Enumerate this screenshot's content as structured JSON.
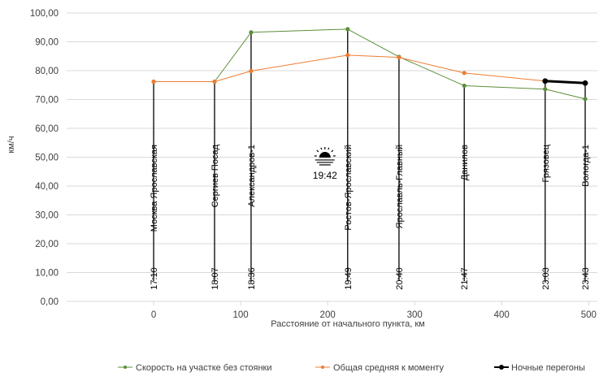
{
  "chart_data": {
    "type": "line",
    "xlabel": "Расстояние от начального пункта, км",
    "ylabel": "км/ч",
    "xlim": [
      -100,
      510
    ],
    "ylim": [
      0,
      100
    ],
    "x_ticks": [
      0,
      100,
      200,
      300,
      400,
      500
    ],
    "y_ticks": [
      0,
      10,
      20,
      30,
      40,
      50,
      60,
      70,
      80,
      90,
      100
    ],
    "y_tick_labels": [
      "0,00",
      "10,00",
      "20,00",
      "30,00",
      "40,00",
      "50,00",
      "60,00",
      "70,00",
      "80,00",
      "90,00",
      "100,00"
    ],
    "grid": "horizontal",
    "legend_position": "bottom",
    "series": [
      {
        "name": "Скорость на участке без стоянки",
        "color": "#5b8f3a",
        "points": [
          {
            "x": 0,
            "y": 76.2
          },
          {
            "x": 70,
            "y": 76.2
          },
          {
            "x": 112,
            "y": 93.3
          },
          {
            "x": 223,
            "y": 94.4
          },
          {
            "x": 282,
            "y": 84.8
          },
          {
            "x": 357,
            "y": 74.8
          },
          {
            "x": 450,
            "y": 73.6
          },
          {
            "x": 496,
            "y": 70.2
          }
        ]
      },
      {
        "name": "Общая средняя к моменту",
        "color": "#ed7d31",
        "points": [
          {
            "x": 0,
            "y": 76.2
          },
          {
            "x": 70,
            "y": 76.2
          },
          {
            "x": 112,
            "y": 79.9
          },
          {
            "x": 223,
            "y": 85.4
          },
          {
            "x": 282,
            "y": 84.6
          },
          {
            "x": 357,
            "y": 79.2
          },
          {
            "x": 450,
            "y": 76.4
          },
          {
            "x": 496,
            "y": 75.7
          }
        ]
      },
      {
        "name": "Ночные перегоны",
        "color": "#000000",
        "points": [
          {
            "x": 450,
            "y": 76.4
          },
          {
            "x": 496,
            "y": 75.7
          }
        ]
      }
    ],
    "stations": [
      {
        "x": 0,
        "name": "Москва Ярославская",
        "time": "17:10",
        "top": 76.2
      },
      {
        "x": 70,
        "name": "Сергиев Посад",
        "time": "18:07",
        "top": 76.2
      },
      {
        "x": 112,
        "name": "Александров-1",
        "time": "18:36",
        "top": 93.3
      },
      {
        "x": 223,
        "name": "Ростов-Ярославский",
        "time": "19:49",
        "top": 94.4
      },
      {
        "x": 282,
        "name": "Ярославль-Главный",
        "time": "20:40",
        "top": 84.8
      },
      {
        "x": 357,
        "name": "Данилов",
        "time": "21:47",
        "top": 74.8
      },
      {
        "x": 450,
        "name": "Грязовец",
        "time": "23:03",
        "top": 76.4
      },
      {
        "x": 496,
        "name": "Вологда-1",
        "time": "23:43",
        "top": 75.7
      }
    ],
    "annotations": [
      {
        "icon": "sunset-icon",
        "text": "19:42",
        "x": 195,
        "y": 51
      }
    ]
  }
}
